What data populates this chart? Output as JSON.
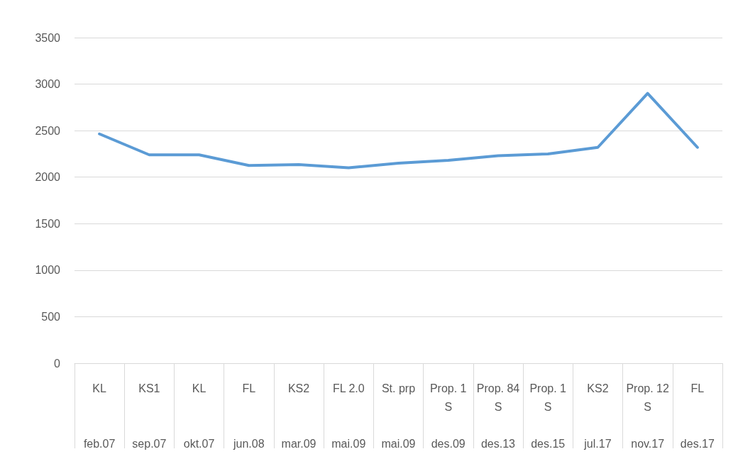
{
  "chart_data": {
    "type": "line",
    "categories": [
      "KL\nfeb.07",
      "KS1\nsep.07",
      "KL\nokt.07",
      "FL\njun.08",
      "KS2\nmar.09",
      "FL 2.0\nmai.09",
      "St. prp\nmai.09",
      "Prop. 1 S\ndes.09",
      "Prop. 84 S\ndes.13",
      "Prop. 1 S\ndes.15",
      "KS2\njul.17",
      "Prop. 12 S\nnov.17",
      "FL\ndes.17"
    ],
    "series": [
      {
        "color": "#5b9bd5",
        "values": [
          2465,
          2240,
          2240,
          2125,
          2135,
          2100,
          2150,
          2180,
          2230,
          2250,
          2320,
          2900,
          2320
        ]
      }
    ],
    "ylim": [
      0,
      3500
    ],
    "yticks": [
      0,
      500,
      1000,
      1500,
      2000,
      2500,
      3000,
      3500
    ],
    "grid": "y",
    "marker": "none",
    "line_style": "solid"
  }
}
